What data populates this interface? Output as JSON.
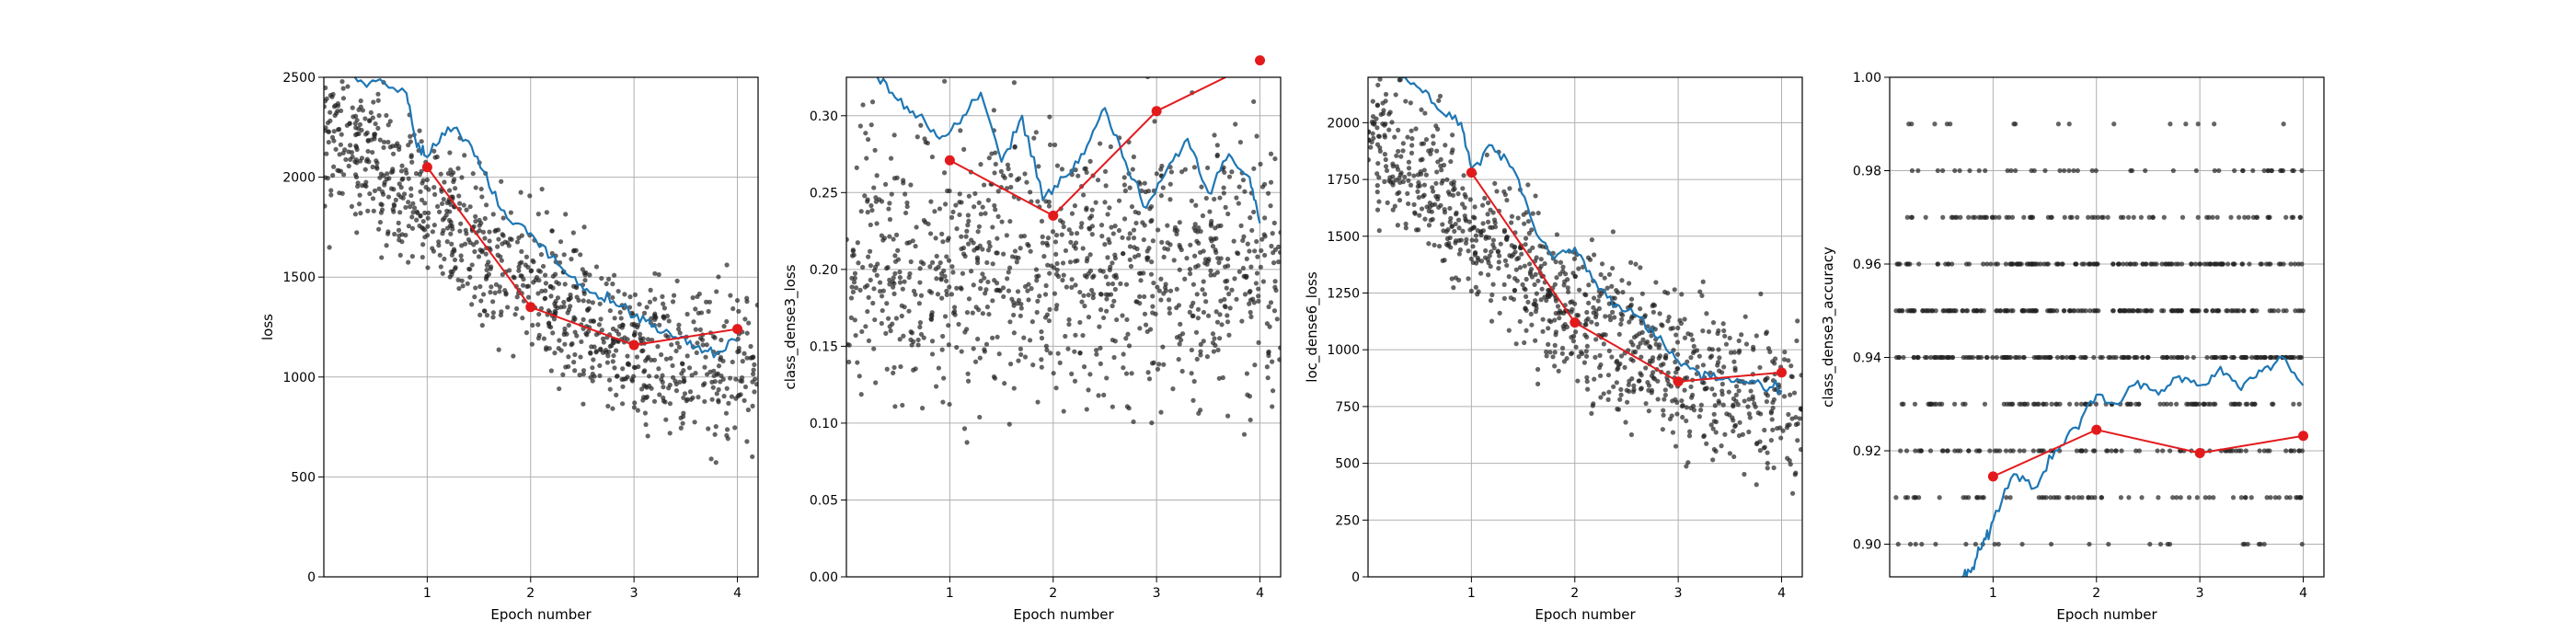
{
  "figure": {
    "background": "#ffffff"
  },
  "colors": {
    "scatter": "#222222",
    "running_mean": "#1f77b4",
    "epoch_mean": "#e31a1c",
    "grid": "#b0b0b0"
  },
  "chart_data": [
    {
      "type": "line",
      "xlabel": "Epoch number",
      "ylabel": "loss",
      "xlim": [
        0,
        4.2
      ],
      "ylim": [
        0,
        2500
      ],
      "xticks": [
        1,
        2,
        3,
        4
      ],
      "xtick_labels": [
        "1",
        "2",
        "3",
        "4"
      ],
      "yticks": [
        0,
        500,
        1000,
        1500,
        2000,
        2500
      ],
      "ytick_labels": [
        "0",
        "500",
        "1000",
        "1500",
        "2000",
        "2500"
      ],
      "grid": true,
      "series": [
        {
          "kind": "epoch_mean",
          "x": [
            1,
            2,
            3,
            4
          ],
          "values": [
            2050,
            1350,
            1160,
            1240
          ]
        },
        {
          "kind": "running_mean",
          "x": [
            0.3,
            0.5,
            0.8,
            0.9,
            1.0,
            1.2,
            1.4,
            1.6,
            1.8,
            2.0,
            2.2,
            2.4,
            2.6,
            2.8,
            3.0,
            3.2,
            3.4,
            3.6,
            3.8,
            4.0
          ],
          "values": [
            2500,
            2480,
            2420,
            2150,
            2100,
            2250,
            2180,
            1950,
            1780,
            1720,
            1600,
            1500,
            1420,
            1380,
            1300,
            1260,
            1200,
            1150,
            1120,
            1180
          ]
        },
        {
          "kind": "scatter",
          "x_range": [
            0,
            4.2
          ],
          "points_per_epoch": 250,
          "trend": [
            [
              0.0,
              2250
            ],
            [
              1.0,
              1850
            ],
            [
              2.0,
              1450
            ],
            [
              3.0,
              1150
            ],
            [
              4.2,
              1000
            ]
          ],
          "spread": 380
        }
      ]
    },
    {
      "type": "line",
      "xlabel": "Epoch number",
      "ylabel": "class_dense3_loss",
      "xlim": [
        0,
        4.2
      ],
      "ylim": [
        0,
        0.325
      ],
      "xticks": [
        1,
        2,
        3,
        4
      ],
      "xtick_labels": [
        "1",
        "2",
        "3",
        "4"
      ],
      "yticks": [
        0,
        0.05,
        0.1,
        0.15,
        0.2,
        0.25,
        0.3
      ],
      "ytick_labels": [
        "0.00",
        "0.05",
        "0.10",
        "0.15",
        "0.20",
        "0.25",
        "0.30"
      ],
      "grid": true,
      "series": [
        {
          "kind": "epoch_mean",
          "x": [
            1,
            2,
            3,
            4
          ],
          "values": [
            0.271,
            0.235,
            0.303,
            0.336
          ]
        },
        {
          "kind": "running_mean",
          "x": [
            0.3,
            0.5,
            0.7,
            0.9,
            1.1,
            1.3,
            1.5,
            1.7,
            1.9,
            2.1,
            2.3,
            2.5,
            2.7,
            2.9,
            3.1,
            3.3,
            3.5,
            3.7,
            3.9,
            4.0
          ],
          "values": [
            0.325,
            0.31,
            0.3,
            0.285,
            0.295,
            0.315,
            0.27,
            0.3,
            0.245,
            0.26,
            0.275,
            0.305,
            0.27,
            0.24,
            0.265,
            0.285,
            0.25,
            0.275,
            0.26,
            0.23
          ]
        },
        {
          "kind": "scatter",
          "x_range": [
            0,
            4.2
          ],
          "points_per_epoch": 250,
          "trend": [
            [
              0.0,
              0.2
            ],
            [
              4.2,
              0.2
            ]
          ],
          "spread": 0.085
        }
      ]
    },
    {
      "type": "line",
      "xlabel": "Epoch number",
      "ylabel": "loc_dense6_loss",
      "xlim": [
        0,
        4.2
      ],
      "ylim": [
        0,
        2200
      ],
      "xticks": [
        1,
        2,
        3,
        4
      ],
      "xtick_labels": [
        "1",
        "2",
        "3",
        "4"
      ],
      "yticks": [
        0,
        250,
        500,
        750,
        1000,
        1250,
        1500,
        1750,
        2000
      ],
      "ytick_labels": [
        "0",
        "250",
        "500",
        "750",
        "1000",
        "1250",
        "1500",
        "1750",
        "2000"
      ],
      "grid": true,
      "series": [
        {
          "kind": "epoch_mean",
          "x": [
            1,
            2,
            3,
            4
          ],
          "values": [
            1780,
            1120,
            860,
            900
          ]
        },
        {
          "kind": "running_mean",
          "x": [
            0.3,
            0.5,
            0.7,
            0.9,
            1.0,
            1.2,
            1.4,
            1.6,
            1.8,
            2.0,
            2.2,
            2.4,
            2.6,
            2.8,
            3.0,
            3.2,
            3.4,
            3.6,
            3.8,
            4.0
          ],
          "values": [
            2200,
            2150,
            2050,
            2000,
            1800,
            1900,
            1800,
            1550,
            1400,
            1450,
            1300,
            1200,
            1150,
            1050,
            950,
            900,
            870,
            860,
            850,
            820
          ]
        },
        {
          "kind": "scatter",
          "x_range": [
            0,
            4.2
          ],
          "points_per_epoch": 250,
          "trend": [
            [
              0.0,
              2000
            ],
            [
              1.0,
              1550
            ],
            [
              2.0,
              1150
            ],
            [
              3.0,
              900
            ],
            [
              4.2,
              750
            ]
          ],
          "spread": 330
        }
      ]
    },
    {
      "type": "line",
      "xlabel": "Epoch number",
      "ylabel": "class_dense3_accuracy",
      "xlim": [
        0,
        4.2
      ],
      "ylim": [
        0.893,
        1.0
      ],
      "xticks": [
        1,
        2,
        3,
        4
      ],
      "xtick_labels": [
        "1",
        "2",
        "3",
        "4"
      ],
      "yticks": [
        0.9,
        0.92,
        0.94,
        0.96,
        0.98,
        1.0
      ],
      "ytick_labels": [
        "0.90",
        "0.92",
        "0.94",
        "0.96",
        "0.98",
        "1.00"
      ],
      "grid": true,
      "series": [
        {
          "kind": "epoch_mean",
          "x": [
            1,
            2,
            3,
            4
          ],
          "values": [
            0.9145,
            0.9245,
            0.9195,
            0.9232
          ]
        },
        {
          "kind": "running_mean",
          "x": [
            0.7,
            0.8,
            0.9,
            1.0,
            1.2,
            1.4,
            1.6,
            1.8,
            2.0,
            2.2,
            2.4,
            2.6,
            2.8,
            3.0,
            3.2,
            3.4,
            3.6,
            3.8,
            4.0
          ],
          "values": [
            0.893,
            0.895,
            0.9,
            0.905,
            0.915,
            0.912,
            0.92,
            0.925,
            0.932,
            0.93,
            0.935,
            0.932,
            0.936,
            0.934,
            0.938,
            0.933,
            0.937,
            0.94,
            0.934
          ]
        },
        {
          "kind": "scatter",
          "x_range": [
            0.05,
            4.0
          ],
          "points_per_epoch": 220,
          "levels": [
            0.9,
            0.91,
            0.92,
            0.93,
            0.94,
            0.95,
            0.96,
            0.97,
            0.98,
            0.99
          ]
        }
      ]
    }
  ]
}
